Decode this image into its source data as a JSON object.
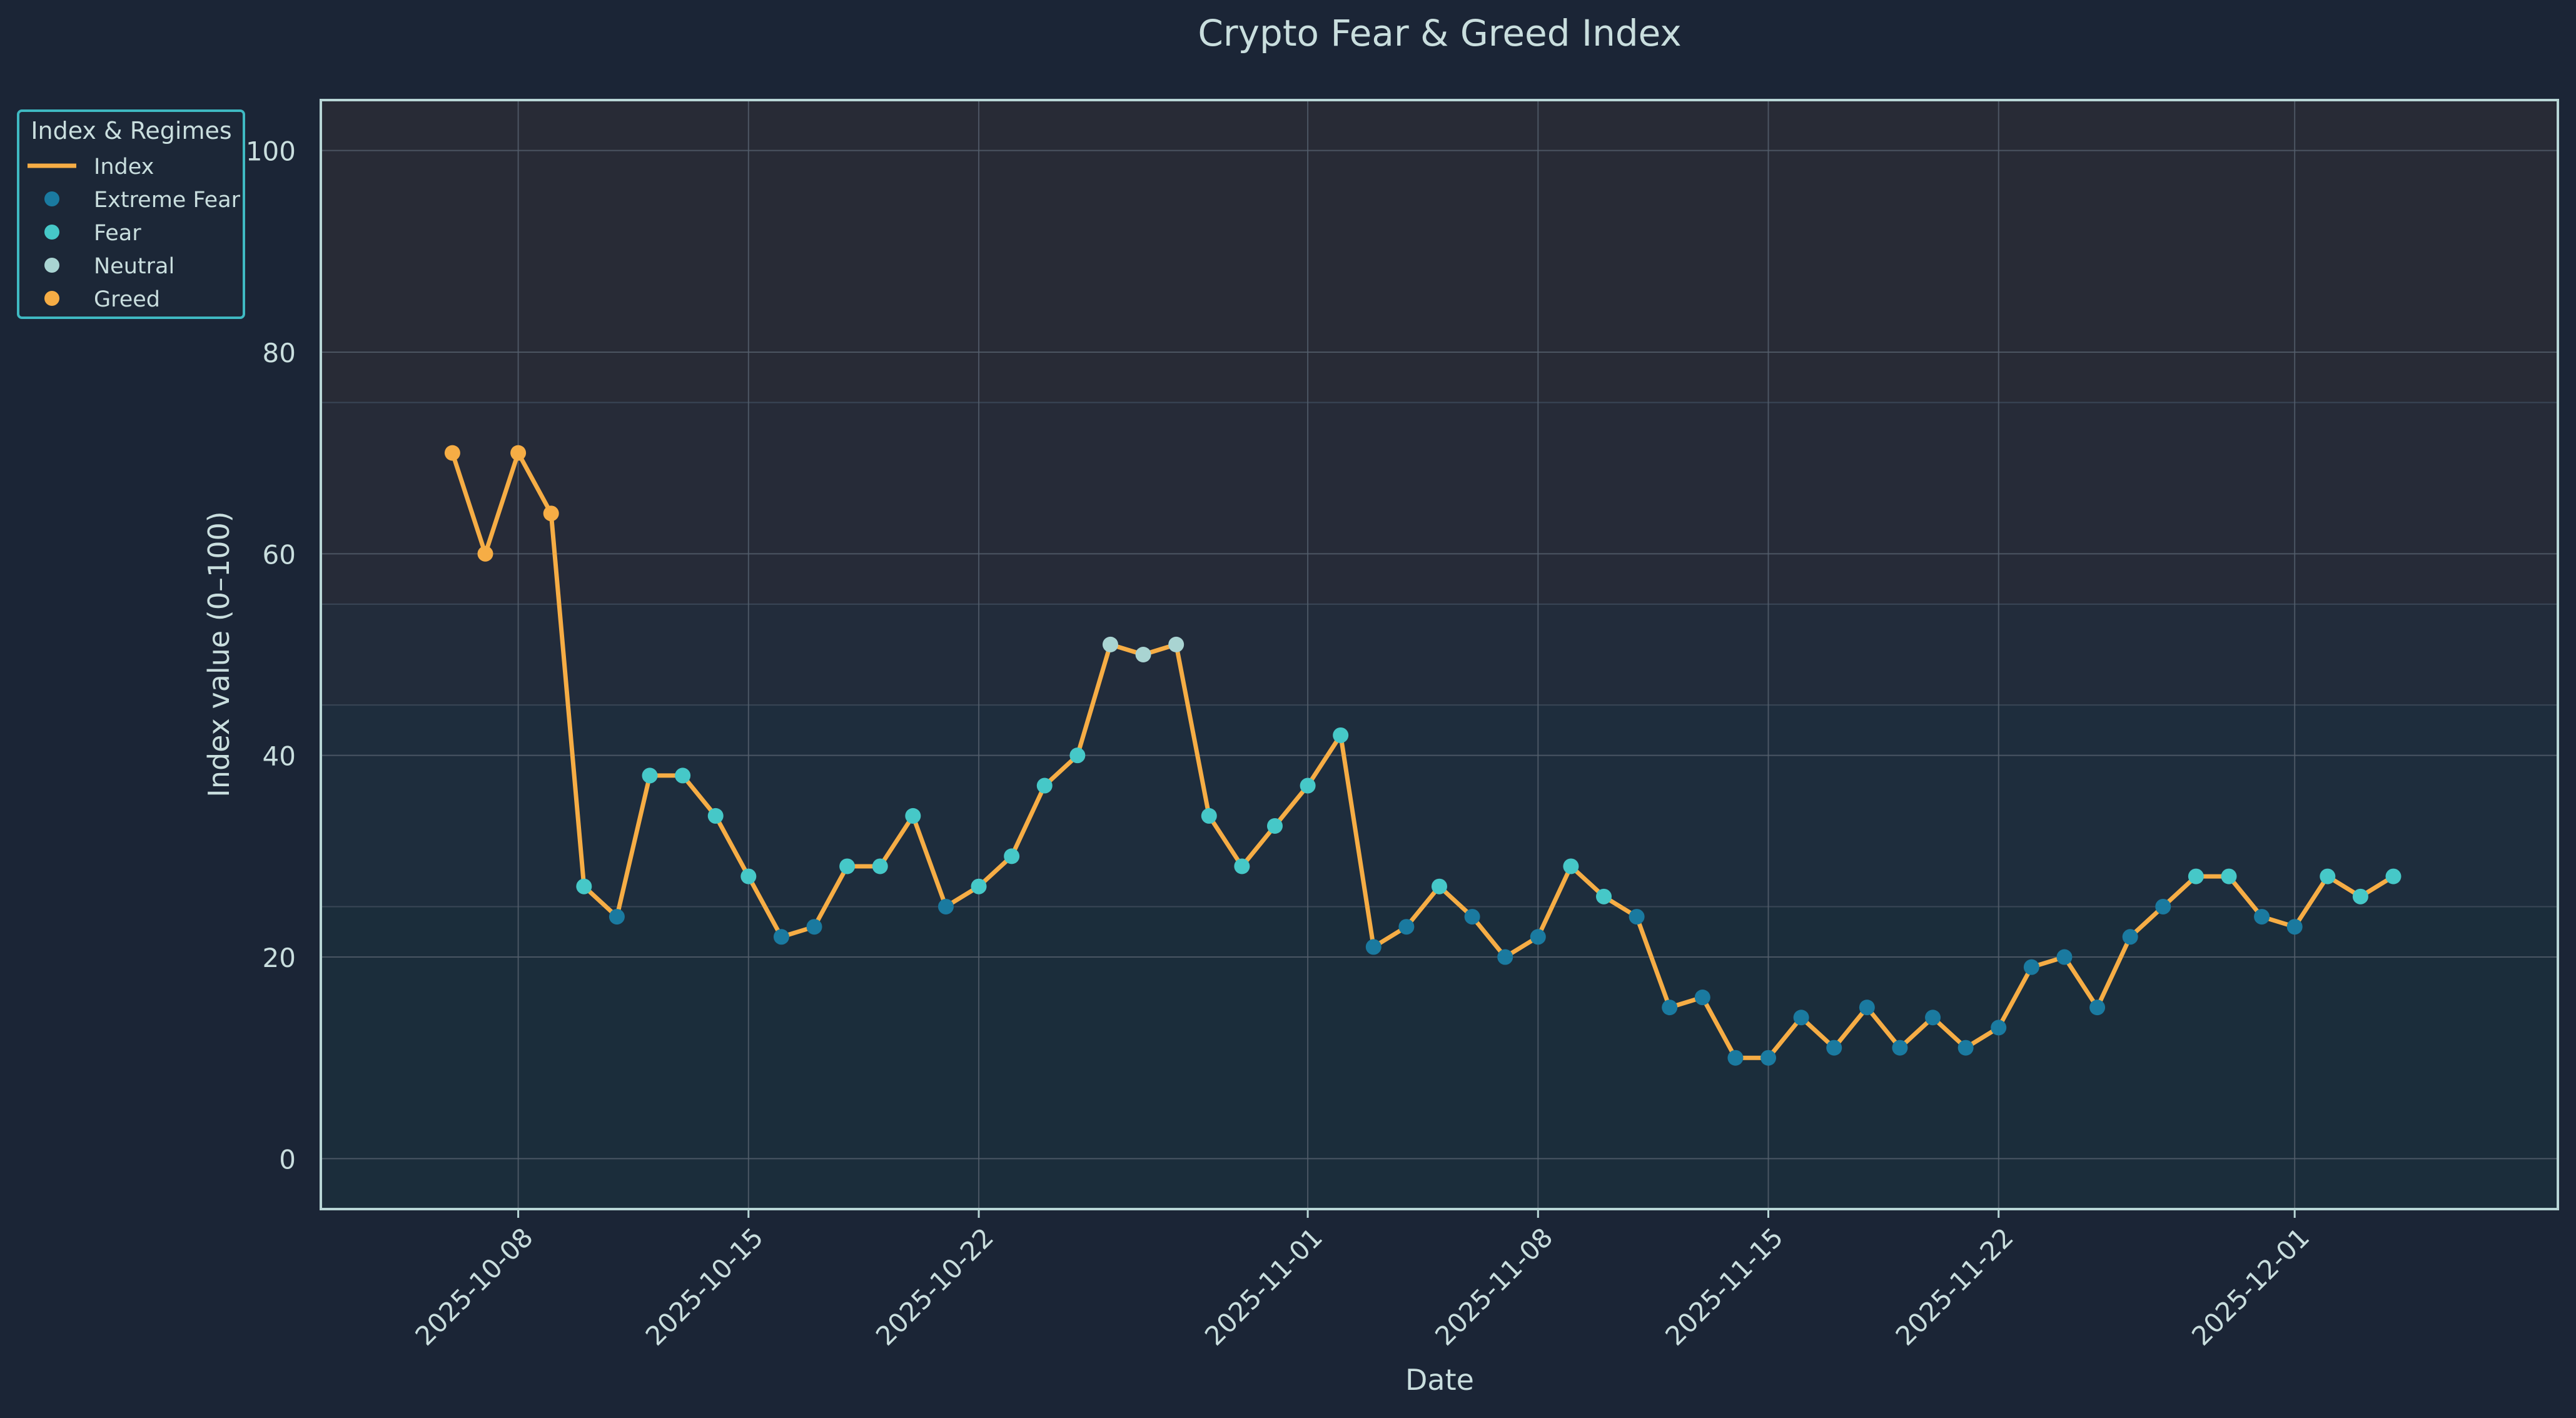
{
  "chart_data": {
    "type": "line",
    "title": "Crypto Fear & Greed Index",
    "xlabel": "Date",
    "ylabel": "Index value (0–100)",
    "x_start": "2025-10-06",
    "x_end": "2025-12-06",
    "xlim": [
      "2025-10-02",
      "2025-12-09"
    ],
    "ylim": [
      -5,
      105
    ],
    "xticks": [
      "2025-10-08",
      "2025-10-15",
      "2025-10-22",
      "2025-11-01",
      "2025-11-08",
      "2025-11-15",
      "2025-11-22",
      "2025-12-01"
    ],
    "yticks": [
      0,
      20,
      40,
      60,
      80,
      100
    ],
    "grid": true,
    "legend": {
      "title": "Index & Regimes",
      "placement": "upper-left-outside",
      "entries": [
        {
          "name": "Index",
          "kind": "line",
          "color": "#f6ad45"
        },
        {
          "name": "Extreme Fear",
          "kind": "dot",
          "color": "#1a7aa0"
        },
        {
          "name": "Fear",
          "kind": "dot",
          "color": "#46c8c8"
        },
        {
          "name": "Neutral",
          "kind": "dot",
          "color": "#a9d4d2"
        },
        {
          "name": "Greed",
          "kind": "dot",
          "color": "#f6ad45"
        }
      ]
    },
    "regime_bands": [
      {
        "from": 0,
        "to": 25,
        "color": "#1b2d3b"
      },
      {
        "from": 25,
        "to": 45,
        "color": "#1e2d3d"
      },
      {
        "from": 45,
        "to": 55,
        "color": "#222c3b"
      },
      {
        "from": 55,
        "to": 75,
        "color": "#262b38"
      },
      {
        "from": 75,
        "to": 100,
        "color": "#282b36"
      }
    ],
    "series": [
      {
        "name": "Index",
        "color": "#f6ad45",
        "values": [
          70,
          60,
          70,
          64,
          27,
          24,
          38,
          38,
          34,
          28,
          22,
          23,
          29,
          29,
          34,
          25,
          27,
          30,
          37,
          40,
          51,
          50,
          51,
          34,
          29,
          33,
          37,
          42,
          21,
          23,
          27,
          24,
          20,
          22,
          29,
          26,
          24,
          15,
          16,
          10,
          10,
          14,
          11,
          15,
          11,
          14,
          11,
          13,
          19,
          20,
          15,
          22,
          25,
          28,
          28,
          24,
          23,
          28,
          26,
          28
        ],
        "regimes": [
          "Greed",
          "Greed",
          "Greed",
          "Greed",
          "Fear",
          "Extreme Fear",
          "Fear",
          "Fear",
          "Fear",
          "Fear",
          "Extreme Fear",
          "Extreme Fear",
          "Fear",
          "Fear",
          "Fear",
          "Extreme Fear",
          "Fear",
          "Fear",
          "Fear",
          "Fear",
          "Neutral",
          "Neutral",
          "Neutral",
          "Fear",
          "Fear",
          "Fear",
          "Fear",
          "Fear",
          "Extreme Fear",
          "Extreme Fear",
          "Fear",
          "Extreme Fear",
          "Extreme Fear",
          "Extreme Fear",
          "Fear",
          "Fear",
          "Extreme Fear",
          "Extreme Fear",
          "Extreme Fear",
          "Extreme Fear",
          "Extreme Fear",
          "Extreme Fear",
          "Extreme Fear",
          "Extreme Fear",
          "Extreme Fear",
          "Extreme Fear",
          "Extreme Fear",
          "Extreme Fear",
          "Extreme Fear",
          "Extreme Fear",
          "Extreme Fear",
          "Extreme Fear",
          "Extreme Fear",
          "Fear",
          "Fear",
          "Extreme Fear",
          "Extreme Fear",
          "Fear",
          "Fear",
          "Fear"
        ]
      }
    ]
  },
  "theme": {
    "background": "#1b2536",
    "axes_border": "#b8d6d6",
    "text": "#c9dede",
    "grid": "#55606e",
    "legend_border": "#3fb9c2",
    "legend_bg": "#1c2737"
  }
}
